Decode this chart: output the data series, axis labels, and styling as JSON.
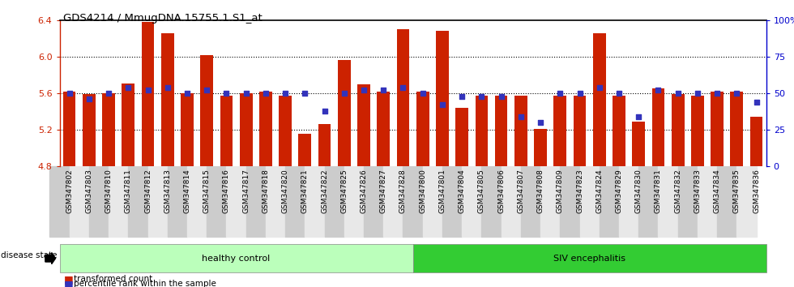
{
  "title": "GDS4214 / MmugDNA.15755.1.S1_at",
  "samples": [
    "GSM347802",
    "GSM347803",
    "GSM347810",
    "GSM347811",
    "GSM347812",
    "GSM347813",
    "GSM347814",
    "GSM347815",
    "GSM347816",
    "GSM347817",
    "GSM347818",
    "GSM347820",
    "GSM347821",
    "GSM347822",
    "GSM347825",
    "GSM347826",
    "GSM347827",
    "GSM347828",
    "GSM347800",
    "GSM347801",
    "GSM347804",
    "GSM347805",
    "GSM347806",
    "GSM347807",
    "GSM347808",
    "GSM347809",
    "GSM347823",
    "GSM347824",
    "GSM347829",
    "GSM347830",
    "GSM347831",
    "GSM347832",
    "GSM347833",
    "GSM347834",
    "GSM347835",
    "GSM347836"
  ],
  "bar_values": [
    5.62,
    5.59,
    5.6,
    5.71,
    6.38,
    6.26,
    5.6,
    6.02,
    5.57,
    5.6,
    5.62,
    5.57,
    5.16,
    5.26,
    5.96,
    5.7,
    5.62,
    6.3,
    5.62,
    6.28,
    5.44,
    5.57,
    5.57,
    5.57,
    5.21,
    5.57,
    5.57,
    6.26,
    5.57,
    5.29,
    5.65,
    5.59,
    5.57,
    5.62,
    5.62,
    5.34
  ],
  "percentile_values": [
    50,
    46,
    50,
    54,
    52,
    54,
    50,
    52,
    50,
    50,
    50,
    50,
    50,
    38,
    50,
    52,
    52,
    54,
    50,
    42,
    48,
    48,
    48,
    34,
    30,
    50,
    50,
    54,
    50,
    34,
    52,
    50,
    50,
    50,
    50,
    44
  ],
  "healthy_count": 18,
  "ymin": 4.8,
  "ymax": 6.4,
  "bar_color": "#cc2200",
  "dot_color": "#3333bb",
  "healthy_color": "#bbffbb",
  "siv_color": "#33cc33",
  "healthy_label": "healthy control",
  "siv_label": "SIV encephalitis",
  "legend_bar": "transformed count",
  "legend_dot": "percentile rank within the sample",
  "disease_state_label": "disease state"
}
